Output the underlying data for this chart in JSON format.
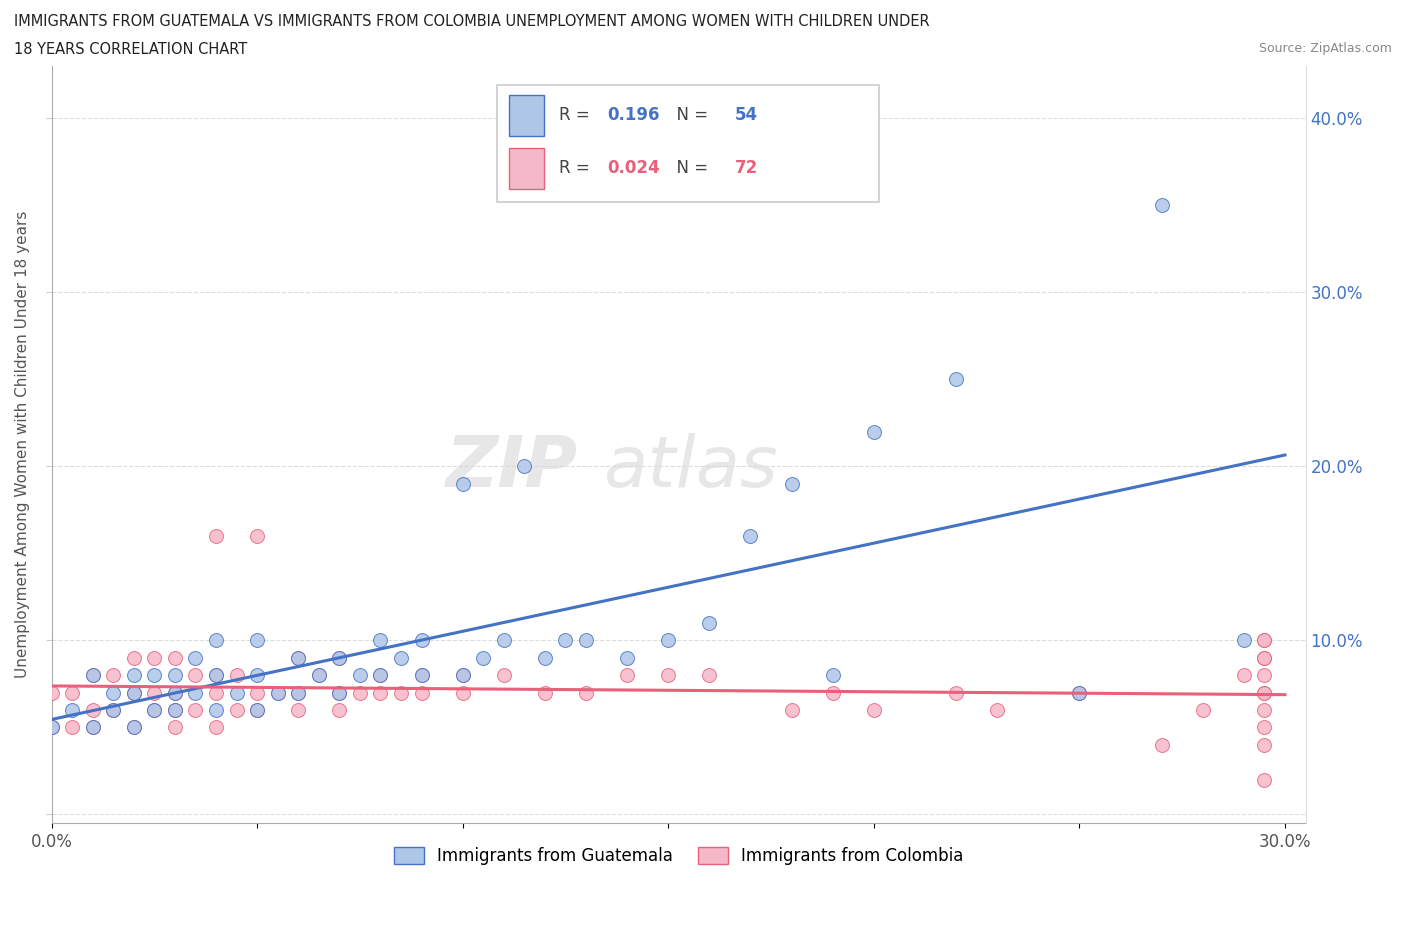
{
  "title_line1": "IMMIGRANTS FROM GUATEMALA VS IMMIGRANTS FROM COLOMBIA UNEMPLOYMENT AMONG WOMEN WITH CHILDREN UNDER",
  "title_line2": "18 YEARS CORRELATION CHART",
  "source": "Source: ZipAtlas.com",
  "ylabel": "Unemployment Among Women with Children Under 18 years",
  "xlim": [
    0.0,
    0.305
  ],
  "ylim": [
    -0.005,
    0.43
  ],
  "guatemala_color": "#aec6e8",
  "colombia_color": "#f5b8c8",
  "guatemala_line_color": "#4472c4",
  "colombia_line_color": "#e8607a",
  "legend_R_guatemala": "0.196",
  "legend_N_guatemala": "54",
  "legend_R_colombia": "0.024",
  "legend_N_colombia": "72",
  "watermark_zip": "ZIP",
  "watermark_atlas": "atlas",
  "guatemala_x": [
    0.0,
    0.005,
    0.01,
    0.01,
    0.015,
    0.015,
    0.02,
    0.02,
    0.02,
    0.025,
    0.025,
    0.03,
    0.03,
    0.03,
    0.035,
    0.035,
    0.04,
    0.04,
    0.04,
    0.045,
    0.05,
    0.05,
    0.05,
    0.055,
    0.06,
    0.06,
    0.065,
    0.07,
    0.07,
    0.075,
    0.08,
    0.08,
    0.085,
    0.09,
    0.09,
    0.1,
    0.1,
    0.105,
    0.11,
    0.115,
    0.12,
    0.125,
    0.13,
    0.14,
    0.15,
    0.16,
    0.17,
    0.18,
    0.19,
    0.2,
    0.22,
    0.25,
    0.27,
    0.29
  ],
  "guatemala_y": [
    0.05,
    0.06,
    0.05,
    0.08,
    0.06,
    0.07,
    0.05,
    0.07,
    0.08,
    0.06,
    0.08,
    0.06,
    0.07,
    0.08,
    0.07,
    0.09,
    0.06,
    0.08,
    0.1,
    0.07,
    0.06,
    0.08,
    0.1,
    0.07,
    0.07,
    0.09,
    0.08,
    0.07,
    0.09,
    0.08,
    0.08,
    0.1,
    0.09,
    0.08,
    0.1,
    0.08,
    0.19,
    0.09,
    0.1,
    0.2,
    0.09,
    0.1,
    0.1,
    0.09,
    0.1,
    0.11,
    0.16,
    0.19,
    0.08,
    0.22,
    0.25,
    0.07,
    0.35,
    0.1
  ],
  "colombia_x": [
    0.0,
    0.0,
    0.005,
    0.005,
    0.01,
    0.01,
    0.01,
    0.015,
    0.015,
    0.02,
    0.02,
    0.02,
    0.025,
    0.025,
    0.025,
    0.03,
    0.03,
    0.03,
    0.03,
    0.035,
    0.035,
    0.04,
    0.04,
    0.04,
    0.04,
    0.045,
    0.045,
    0.05,
    0.05,
    0.05,
    0.055,
    0.06,
    0.06,
    0.06,
    0.065,
    0.07,
    0.07,
    0.07,
    0.075,
    0.08,
    0.08,
    0.085,
    0.09,
    0.09,
    0.1,
    0.1,
    0.11,
    0.12,
    0.13,
    0.14,
    0.15,
    0.16,
    0.18,
    0.19,
    0.2,
    0.22,
    0.23,
    0.25,
    0.27,
    0.28,
    0.29,
    0.295,
    0.295,
    0.295,
    0.295,
    0.295,
    0.295,
    0.295,
    0.295,
    0.295,
    0.295,
    0.295
  ],
  "colombia_y": [
    0.05,
    0.07,
    0.05,
    0.07,
    0.05,
    0.06,
    0.08,
    0.06,
    0.08,
    0.05,
    0.07,
    0.09,
    0.06,
    0.07,
    0.09,
    0.05,
    0.06,
    0.07,
    0.09,
    0.06,
    0.08,
    0.05,
    0.07,
    0.08,
    0.16,
    0.06,
    0.08,
    0.06,
    0.07,
    0.16,
    0.07,
    0.06,
    0.07,
    0.09,
    0.08,
    0.06,
    0.07,
    0.09,
    0.07,
    0.07,
    0.08,
    0.07,
    0.07,
    0.08,
    0.07,
    0.08,
    0.08,
    0.07,
    0.07,
    0.08,
    0.08,
    0.08,
    0.06,
    0.07,
    0.06,
    0.07,
    0.06,
    0.07,
    0.04,
    0.06,
    0.08,
    0.1,
    0.07,
    0.05,
    0.06,
    0.07,
    0.08,
    0.09,
    0.1,
    0.09,
    0.04,
    0.02
  ]
}
